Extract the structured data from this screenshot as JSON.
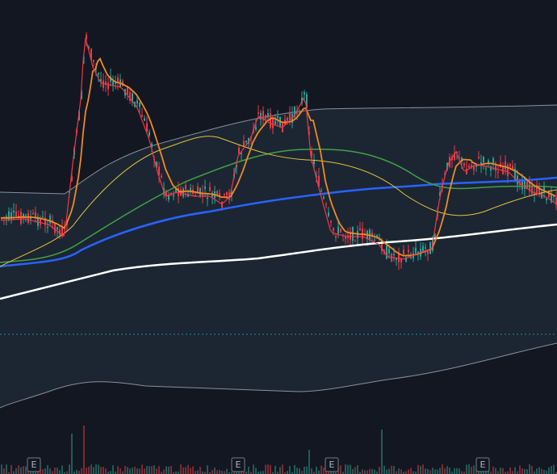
{
  "markers": [
    "E",
    "E",
    "E",
    "E"
  ]
}
